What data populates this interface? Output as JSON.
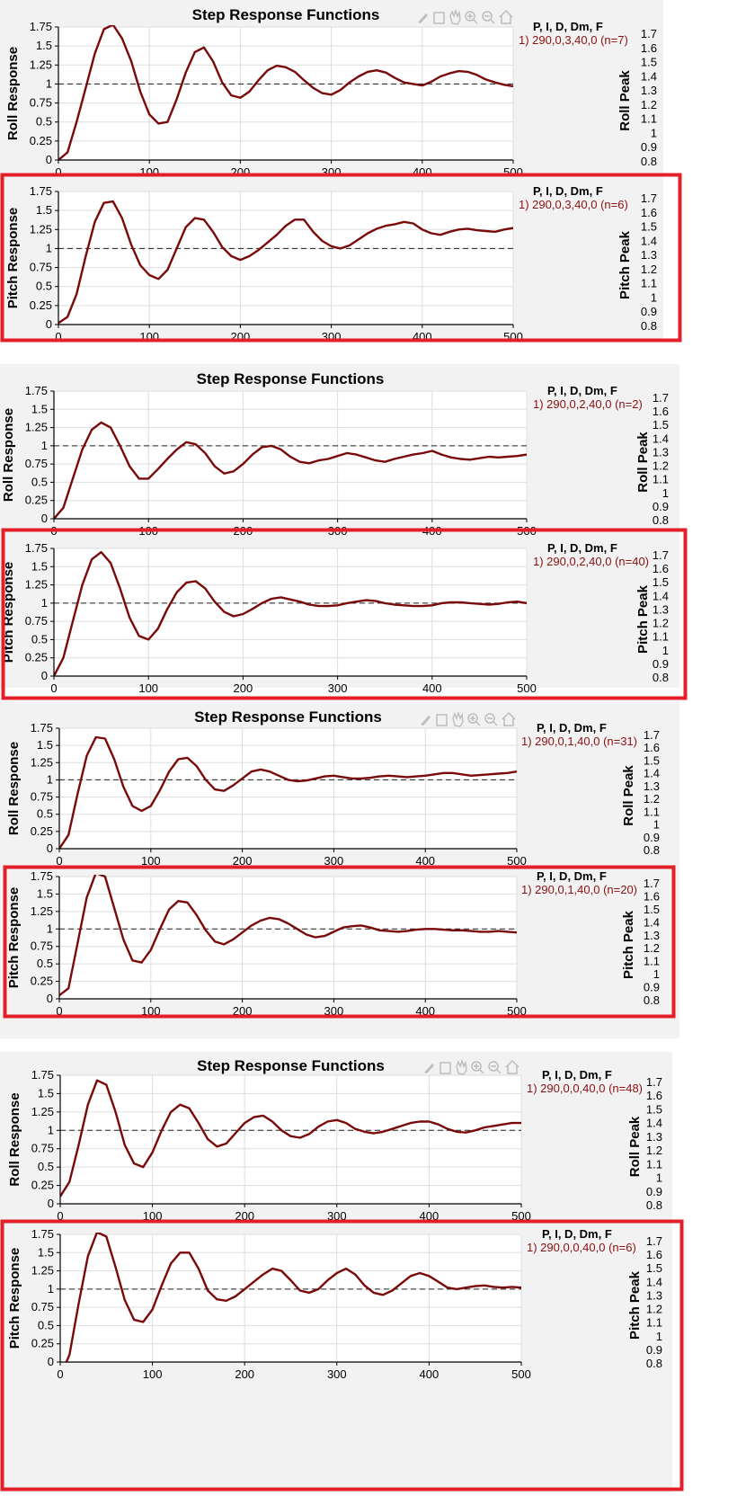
{
  "panels": [
    {
      "title": "Step Response Functions",
      "toolbar": [
        "brush-icon",
        "data-cursor-icon",
        "pan-icon",
        "zoom-in-icon",
        "zoom-out-icon",
        "home-icon"
      ],
      "top": {
        "ylabel": "Roll Response",
        "legend_header": "P, I, D, Dm, F",
        "legend_entry": "1) 290,0,3,40,0  (n=7)",
        "peak_label": "Roll Peak"
      },
      "bottom": {
        "ylabel": "Pitch Response",
        "legend_header": "P, I, D, Dm, F",
        "legend_entry": "1) 290,0,3,40,0  (n=6)",
        "peak_label": "Pitch Peak"
      }
    },
    {
      "title": "Step Response Functions",
      "toolbar": [],
      "top": {
        "ylabel": "Roll Response",
        "legend_header": "P, I, D, Dm, F",
        "legend_entry": "1) 290,0,2,40,0  (n=2)",
        "peak_label": "Roll Peak"
      },
      "bottom": {
        "ylabel": "Pitch Response",
        "legend_header": "P, I, D, Dm, F",
        "legend_entry": "1) 290,0,2,40,0  (n=40)",
        "peak_label": "Pitch Peak"
      }
    },
    {
      "title": "Step Response Functions",
      "toolbar": [
        "brush-icon",
        "data-cursor-icon",
        "pan-icon",
        "zoom-in-icon",
        "zoom-out-icon",
        "home-icon"
      ],
      "top": {
        "ylabel": "Roll Response",
        "legend_header": "P, I, D, Dm, F",
        "legend_entry": "1) 290,0,1,40,0  (n=31)",
        "peak_label": "Roll Peak"
      },
      "bottom": {
        "ylabel": "Pitch Response",
        "legend_header": "P, I, D, Dm, F",
        "legend_entry": "1) 290,0,1,40,0  (n=20)",
        "peak_label": "Pitch Peak"
      }
    },
    {
      "title": "Step Response Functions",
      "toolbar": [
        "brush-icon",
        "data-cursor-icon",
        "pan-icon",
        "zoom-in-icon",
        "zoom-out-icon",
        "home-icon"
      ],
      "top": {
        "ylabel": "Roll Response",
        "legend_header": "P, I, D, Dm, F",
        "legend_entry": "1) 290,0,0,40,0  (n=48)",
        "peak_label": "Roll Peak"
      },
      "bottom": {
        "ylabel": "Pitch Response",
        "legend_header": "P, I, D, Dm, F",
        "legend_entry": "1) 290,0,0,40,0  (n=6)",
        "peak_label": "Pitch Peak"
      }
    }
  ],
  "colors": {
    "line": "#7a0a0a",
    "legend_text": "#8b1010",
    "highlight": "#e3202a",
    "panel_bg": "#f2f2f2",
    "grid": "#dddddd",
    "axis": "#000000"
  },
  "chart_data": [
    {
      "type": "line",
      "panel": 1,
      "plot": "roll",
      "xlim": [
        0,
        500
      ],
      "ylim": [
        0,
        1.75
      ],
      "reference_y": 1,
      "x": [
        0,
        10,
        20,
        30,
        40,
        50,
        60,
        70,
        80,
        90,
        100,
        110,
        120,
        130,
        140,
        150,
        160,
        170,
        180,
        190,
        200,
        210,
        220,
        230,
        240,
        250,
        260,
        270,
        280,
        290,
        300,
        310,
        320,
        330,
        340,
        350,
        360,
        370,
        380,
        390,
        400,
        410,
        420,
        430,
        440,
        450,
        460,
        470,
        480,
        490,
        500
      ],
      "y": [
        0,
        0.1,
        0.5,
        0.95,
        1.4,
        1.72,
        1.78,
        1.6,
        1.3,
        0.9,
        0.6,
        0.48,
        0.5,
        0.8,
        1.15,
        1.42,
        1.48,
        1.3,
        1.02,
        0.85,
        0.82,
        0.9,
        1.05,
        1.18,
        1.24,
        1.22,
        1.16,
        1.05,
        0.95,
        0.88,
        0.86,
        0.92,
        1.02,
        1.1,
        1.16,
        1.18,
        1.15,
        1.08,
        1.02,
        1.0,
        0.98,
        1.03,
        1.1,
        1.14,
        1.17,
        1.16,
        1.12,
        1.06,
        1.02,
        0.99,
        0.97
      ]
    },
    {
      "type": "line",
      "panel": 1,
      "plot": "pitch",
      "xlim": [
        0,
        500
      ],
      "ylim": [
        0,
        1.75
      ],
      "reference_y": 1,
      "x": [
        0,
        10,
        20,
        30,
        40,
        50,
        60,
        70,
        80,
        90,
        100,
        110,
        120,
        130,
        140,
        150,
        160,
        170,
        180,
        190,
        200,
        210,
        220,
        230,
        240,
        250,
        260,
        270,
        280,
        290,
        300,
        310,
        320,
        330,
        340,
        350,
        360,
        370,
        380,
        390,
        400,
        410,
        420,
        430,
        440,
        450,
        460,
        470,
        480,
        490,
        500
      ],
      "y": [
        0.02,
        0.1,
        0.4,
        0.9,
        1.35,
        1.6,
        1.62,
        1.4,
        1.05,
        0.78,
        0.65,
        0.6,
        0.72,
        1.0,
        1.28,
        1.4,
        1.38,
        1.22,
        1.02,
        0.9,
        0.85,
        0.9,
        0.98,
        1.08,
        1.18,
        1.3,
        1.38,
        1.38,
        1.22,
        1.1,
        1.03,
        1.0,
        1.04,
        1.12,
        1.2,
        1.26,
        1.3,
        1.32,
        1.35,
        1.33,
        1.25,
        1.2,
        1.18,
        1.22,
        1.25,
        1.26,
        1.24,
        1.23,
        1.22,
        1.25,
        1.27
      ]
    },
    {
      "type": "line",
      "panel": 2,
      "plot": "roll",
      "xlim": [
        0,
        500
      ],
      "ylim": [
        0,
        1.75
      ],
      "reference_y": 1,
      "x": [
        0,
        10,
        20,
        30,
        40,
        50,
        60,
        70,
        80,
        90,
        100,
        110,
        120,
        130,
        140,
        150,
        160,
        170,
        180,
        190,
        200,
        210,
        220,
        230,
        240,
        250,
        260,
        270,
        280,
        290,
        300,
        310,
        320,
        330,
        340,
        350,
        360,
        370,
        380,
        390,
        400,
        410,
        420,
        430,
        440,
        450,
        460,
        470,
        480,
        490,
        500
      ],
      "y": [
        0,
        0.15,
        0.55,
        0.95,
        1.22,
        1.32,
        1.25,
        1.0,
        0.72,
        0.55,
        0.55,
        0.68,
        0.82,
        0.95,
        1.05,
        1.02,
        0.9,
        0.72,
        0.62,
        0.65,
        0.75,
        0.88,
        0.98,
        1.0,
        0.95,
        0.85,
        0.78,
        0.76,
        0.8,
        0.82,
        0.86,
        0.9,
        0.88,
        0.84,
        0.8,
        0.78,
        0.82,
        0.85,
        0.88,
        0.9,
        0.93,
        0.88,
        0.84,
        0.82,
        0.81,
        0.83,
        0.85,
        0.84,
        0.85,
        0.86,
        0.88
      ]
    },
    {
      "type": "line",
      "panel": 2,
      "plot": "pitch",
      "xlim": [
        0,
        500
      ],
      "ylim": [
        0,
        1.75
      ],
      "reference_y": 1,
      "x": [
        0,
        10,
        20,
        30,
        40,
        50,
        60,
        70,
        80,
        90,
        100,
        110,
        120,
        130,
        140,
        150,
        160,
        170,
        180,
        190,
        200,
        210,
        220,
        230,
        240,
        250,
        260,
        270,
        280,
        290,
        300,
        310,
        320,
        330,
        340,
        350,
        360,
        370,
        380,
        390,
        400,
        410,
        420,
        430,
        440,
        450,
        460,
        470,
        480,
        490,
        500
      ],
      "y": [
        0,
        0.25,
        0.75,
        1.25,
        1.6,
        1.7,
        1.55,
        1.2,
        0.8,
        0.55,
        0.5,
        0.65,
        0.92,
        1.15,
        1.28,
        1.3,
        1.2,
        1.02,
        0.88,
        0.82,
        0.85,
        0.92,
        1.0,
        1.06,
        1.08,
        1.05,
        1.02,
        0.98,
        0.96,
        0.96,
        0.97,
        1.0,
        1.02,
        1.04,
        1.03,
        1.0,
        0.98,
        0.97,
        0.96,
        0.96,
        0.97,
        1.0,
        1.01,
        1.01,
        1.0,
        0.99,
        0.98,
        0.99,
        1.01,
        1.02,
        1.0
      ]
    },
    {
      "type": "line",
      "panel": 3,
      "plot": "roll",
      "xlim": [
        0,
        500
      ],
      "ylim": [
        0,
        1.75
      ],
      "reference_y": 1,
      "x": [
        0,
        10,
        20,
        30,
        40,
        50,
        60,
        70,
        80,
        90,
        100,
        110,
        120,
        130,
        140,
        150,
        160,
        170,
        180,
        190,
        200,
        210,
        220,
        230,
        240,
        250,
        260,
        270,
        280,
        290,
        300,
        310,
        320,
        330,
        340,
        350,
        360,
        370,
        380,
        390,
        400,
        410,
        420,
        430,
        440,
        450,
        460,
        470,
        480,
        490,
        500
      ],
      "y": [
        0,
        0.2,
        0.8,
        1.35,
        1.62,
        1.6,
        1.3,
        0.9,
        0.62,
        0.55,
        0.62,
        0.85,
        1.12,
        1.3,
        1.32,
        1.2,
        1.0,
        0.86,
        0.84,
        0.92,
        1.02,
        1.12,
        1.15,
        1.12,
        1.06,
        1.0,
        0.98,
        0.99,
        1.02,
        1.05,
        1.06,
        1.04,
        1.02,
        1.02,
        1.03,
        1.05,
        1.06,
        1.05,
        1.04,
        1.05,
        1.06,
        1.08,
        1.1,
        1.1,
        1.08,
        1.06,
        1.07,
        1.08,
        1.09,
        1.1,
        1.12
      ]
    },
    {
      "type": "line",
      "panel": 3,
      "plot": "pitch",
      "xlim": [
        0,
        500
      ],
      "ylim": [
        0,
        1.75
      ],
      "reference_y": 1,
      "x": [
        0,
        10,
        20,
        30,
        40,
        50,
        60,
        70,
        80,
        90,
        100,
        110,
        120,
        130,
        140,
        150,
        160,
        170,
        180,
        190,
        200,
        210,
        220,
        230,
        240,
        250,
        260,
        270,
        280,
        290,
        300,
        310,
        320,
        330,
        340,
        350,
        360,
        370,
        380,
        390,
        400,
        410,
        420,
        430,
        440,
        450,
        460,
        470,
        480,
        490,
        500
      ],
      "y": [
        0.05,
        0.15,
        0.8,
        1.45,
        1.8,
        1.75,
        1.3,
        0.85,
        0.55,
        0.52,
        0.7,
        1.0,
        1.28,
        1.4,
        1.38,
        1.2,
        0.98,
        0.82,
        0.78,
        0.85,
        0.95,
        1.05,
        1.12,
        1.16,
        1.14,
        1.08,
        1.0,
        0.92,
        0.88,
        0.9,
        0.96,
        1.02,
        1.04,
        1.05,
        1.02,
        0.98,
        0.97,
        0.96,
        0.97,
        0.99,
        1.0,
        1.0,
        0.99,
        0.98,
        0.98,
        0.97,
        0.96,
        0.96,
        0.97,
        0.96,
        0.95
      ]
    },
    {
      "type": "line",
      "panel": 4,
      "plot": "roll",
      "xlim": [
        0,
        500
      ],
      "ylim": [
        0,
        1.75
      ],
      "reference_y": 1,
      "x": [
        0,
        10,
        20,
        30,
        40,
        50,
        60,
        70,
        80,
        90,
        100,
        110,
        120,
        130,
        140,
        150,
        160,
        170,
        180,
        190,
        200,
        210,
        220,
        230,
        240,
        250,
        260,
        270,
        280,
        290,
        300,
        310,
        320,
        330,
        340,
        350,
        360,
        370,
        380,
        390,
        400,
        410,
        420,
        430,
        440,
        450,
        460,
        470,
        480,
        490,
        500
      ],
      "y": [
        0.1,
        0.3,
        0.8,
        1.35,
        1.68,
        1.62,
        1.25,
        0.8,
        0.55,
        0.5,
        0.7,
        1.0,
        1.25,
        1.35,
        1.3,
        1.1,
        0.88,
        0.78,
        0.82,
        0.96,
        1.1,
        1.18,
        1.2,
        1.12,
        1.0,
        0.92,
        0.9,
        0.95,
        1.05,
        1.12,
        1.14,
        1.1,
        1.02,
        0.98,
        0.96,
        0.98,
        1.02,
        1.06,
        1.1,
        1.12,
        1.12,
        1.08,
        1.02,
        0.98,
        0.97,
        1.0,
        1.04,
        1.06,
        1.08,
        1.1,
        1.1
      ]
    },
    {
      "type": "line",
      "panel": 4,
      "plot": "pitch",
      "xlim": [
        0,
        500
      ],
      "ylim": [
        0,
        1.75
      ],
      "reference_y": 1,
      "x": [
        0,
        10,
        20,
        30,
        40,
        50,
        60,
        70,
        80,
        90,
        100,
        110,
        120,
        130,
        140,
        150,
        160,
        170,
        180,
        190,
        200,
        210,
        220,
        230,
        240,
        250,
        260,
        270,
        280,
        290,
        300,
        310,
        320,
        330,
        340,
        350,
        360,
        370,
        380,
        390,
        400,
        410,
        420,
        430,
        440,
        450,
        460,
        470,
        480,
        490,
        500
      ],
      "y": [
        -0.2,
        0.1,
        0.8,
        1.45,
        1.78,
        1.72,
        1.3,
        0.85,
        0.58,
        0.55,
        0.72,
        1.05,
        1.35,
        1.5,
        1.5,
        1.28,
        0.98,
        0.86,
        0.84,
        0.9,
        1.0,
        1.1,
        1.2,
        1.28,
        1.25,
        1.12,
        0.98,
        0.95,
        1.0,
        1.12,
        1.22,
        1.28,
        1.2,
        1.05,
        0.95,
        0.92,
        0.98,
        1.08,
        1.18,
        1.22,
        1.18,
        1.1,
        1.02,
        1.0,
        1.02,
        1.04,
        1.05,
        1.03,
        1.02,
        1.03,
        1.02
      ]
    }
  ]
}
